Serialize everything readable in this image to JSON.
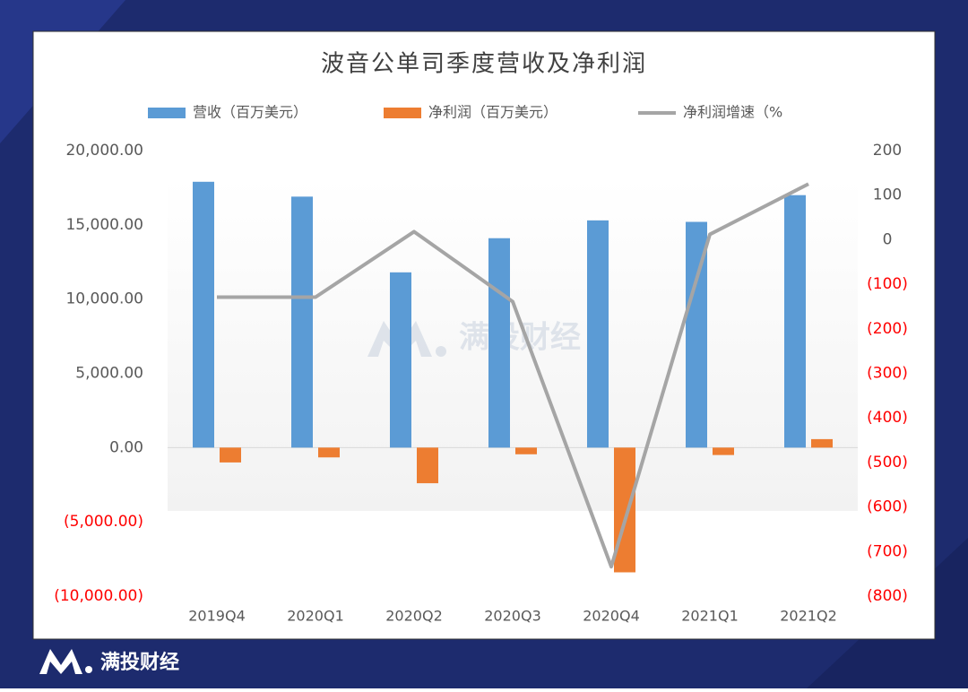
{
  "chart_data": {
    "type": "bar",
    "title": "波音公单司季度营收及净利润",
    "categories": [
      "2019Q4",
      "2020Q1",
      "2020Q2",
      "2020Q3",
      "2020Q4",
      "2021Q1",
      "2021Q2"
    ],
    "series": [
      {
        "name": "营收（百万美元）",
        "type": "bar",
        "color": "#5b9bd5",
        "values": [
          17900,
          16900,
          11800,
          14100,
          15300,
          15200,
          17000
        ]
      },
      {
        "name": "净利润（百万美元）",
        "type": "bar",
        "color": "#ed7d31",
        "values": [
          -1000,
          -660,
          -2400,
          -450,
          -8400,
          -500,
          570
        ]
      },
      {
        "name": "净利润增速（%",
        "type": "line",
        "axis": "y2",
        "color": "#a5a5a5",
        "values": [
          -129,
          -129,
          18,
          -139,
          -734,
          12,
          125
        ]
      }
    ],
    "ylim": [
      -10000,
      20000
    ],
    "yticks": [
      {
        "value": -10000,
        "label": "(10,000.00)"
      },
      {
        "value": -5000,
        "label": "(5,000.00)"
      },
      {
        "value": 0,
        "label": "0.00"
      },
      {
        "value": 5000,
        "label": "5,000.00"
      },
      {
        "value": 10000,
        "label": "10,000.00"
      },
      {
        "value": 15000,
        "label": "15,000.00"
      },
      {
        "value": 20000,
        "label": "20,000.00"
      }
    ],
    "y2lim": [
      -800,
      200
    ],
    "y2ticks": [
      {
        "value": -800,
        "label": "(800)"
      },
      {
        "value": -700,
        "label": "(700)"
      },
      {
        "value": -600,
        "label": "(600)"
      },
      {
        "value": -500,
        "label": "(500)"
      },
      {
        "value": -400,
        "label": "(400)"
      },
      {
        "value": -300,
        "label": "(300)"
      },
      {
        "value": -200,
        "label": "(200)"
      },
      {
        "value": -100,
        "label": "(100)"
      },
      0,
      100,
      200
    ],
    "negative_tick_color": "#ff0000",
    "grid": false
  },
  "watermark": "满投财经",
  "footer": {
    "brand": "满投财经"
  }
}
